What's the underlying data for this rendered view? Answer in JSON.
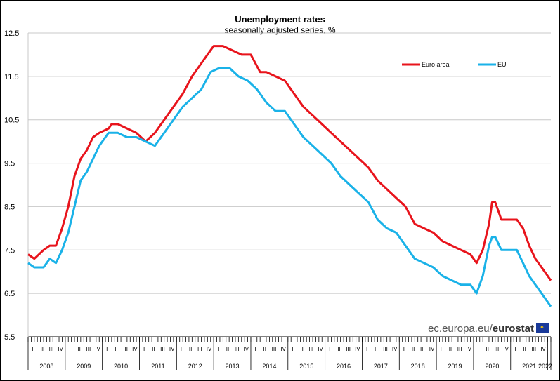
{
  "source_text": "ec.europa.eu/",
  "source_brand": "eurostat",
  "chart_data": {
    "type": "line",
    "title": "Unemployment rates",
    "subtitle": "seasonally adjusted series, %",
    "ylim": [
      5.5,
      12.5
    ],
    "yticks": [
      "5.5",
      "6.5",
      "7.5",
      "8.5",
      "9.5",
      "10.5",
      "11.5",
      "12.5"
    ],
    "grid": true,
    "legend_position": "top-right",
    "x_start": "2008-01",
    "x_end": "2022-02",
    "quarter_labels": [
      "I",
      "II",
      "III",
      "IV"
    ],
    "year_labels": [
      "2008",
      "2009",
      "2010",
      "2011",
      "2012",
      "2013",
      "2014",
      "2015",
      "2016",
      "2017",
      "2018",
      "2019",
      "2020",
      "2021",
      "2022"
    ],
    "series": [
      {
        "name": "Euro area",
        "color": "#e8141c",
        "points": [
          [
            "2008-01",
            7.4
          ],
          [
            "2008-03",
            7.3
          ],
          [
            "2008-06",
            7.5
          ],
          [
            "2008-08",
            7.6
          ],
          [
            "2008-10",
            7.6
          ],
          [
            "2008-12",
            8.0
          ],
          [
            "2009-02",
            8.5
          ],
          [
            "2009-04",
            9.2
          ],
          [
            "2009-06",
            9.6
          ],
          [
            "2009-08",
            9.8
          ],
          [
            "2009-10",
            10.1
          ],
          [
            "2009-12",
            10.2
          ],
          [
            "2010-03",
            10.3
          ],
          [
            "2010-04",
            10.4
          ],
          [
            "2010-06",
            10.4
          ],
          [
            "2010-09",
            10.3
          ],
          [
            "2010-12",
            10.2
          ],
          [
            "2011-03",
            10.0
          ],
          [
            "2011-06",
            10.2
          ],
          [
            "2011-09",
            10.5
          ],
          [
            "2011-12",
            10.8
          ],
          [
            "2012-03",
            11.1
          ],
          [
            "2012-06",
            11.5
          ],
          [
            "2012-09",
            11.8
          ],
          [
            "2012-11",
            12.0
          ],
          [
            "2013-01",
            12.2
          ],
          [
            "2013-04",
            12.2
          ],
          [
            "2013-07",
            12.1
          ],
          [
            "2013-10",
            12.0
          ],
          [
            "2014-01",
            12.0
          ],
          [
            "2014-04",
            11.6
          ],
          [
            "2014-06",
            11.6
          ],
          [
            "2014-09",
            11.5
          ],
          [
            "2014-12",
            11.4
          ],
          [
            "2015-03",
            11.1
          ],
          [
            "2015-06",
            10.8
          ],
          [
            "2015-09",
            10.6
          ],
          [
            "2015-12",
            10.4
          ],
          [
            "2016-03",
            10.2
          ],
          [
            "2016-06",
            10.0
          ],
          [
            "2016-09",
            9.8
          ],
          [
            "2016-12",
            9.6
          ],
          [
            "2017-03",
            9.4
          ],
          [
            "2017-06",
            9.1
          ],
          [
            "2017-09",
            8.9
          ],
          [
            "2017-12",
            8.7
          ],
          [
            "2018-03",
            8.5
          ],
          [
            "2018-06",
            8.1
          ],
          [
            "2018-09",
            8.0
          ],
          [
            "2018-12",
            7.9
          ],
          [
            "2019-03",
            7.7
          ],
          [
            "2019-06",
            7.6
          ],
          [
            "2019-09",
            7.5
          ],
          [
            "2019-12",
            7.4
          ],
          [
            "2020-02",
            7.2
          ],
          [
            "2020-04",
            7.5
          ],
          [
            "2020-06",
            8.1
          ],
          [
            "2020-07",
            8.6
          ],
          [
            "2020-08",
            8.6
          ],
          [
            "2020-10",
            8.2
          ],
          [
            "2020-12",
            8.2
          ],
          [
            "2021-03",
            8.2
          ],
          [
            "2021-05",
            8.0
          ],
          [
            "2021-07",
            7.6
          ],
          [
            "2021-09",
            7.3
          ],
          [
            "2021-11",
            7.1
          ],
          [
            "2022-01",
            6.9
          ],
          [
            "2022-02",
            6.8
          ]
        ]
      },
      {
        "name": "EU",
        "color": "#1ab2e8",
        "points": [
          [
            "2008-01",
            7.2
          ],
          [
            "2008-03",
            7.1
          ],
          [
            "2008-06",
            7.1
          ],
          [
            "2008-08",
            7.3
          ],
          [
            "2008-10",
            7.2
          ],
          [
            "2008-12",
            7.5
          ],
          [
            "2009-02",
            7.9
          ],
          [
            "2009-04",
            8.5
          ],
          [
            "2009-06",
            9.1
          ],
          [
            "2009-08",
            9.3
          ],
          [
            "2009-10",
            9.6
          ],
          [
            "2009-12",
            9.9
          ],
          [
            "2010-03",
            10.2
          ],
          [
            "2010-06",
            10.2
          ],
          [
            "2010-09",
            10.1
          ],
          [
            "2010-12",
            10.1
          ],
          [
            "2011-03",
            10.0
          ],
          [
            "2011-06",
            9.9
          ],
          [
            "2011-09",
            10.2
          ],
          [
            "2011-12",
            10.5
          ],
          [
            "2012-03",
            10.8
          ],
          [
            "2012-06",
            11.0
          ],
          [
            "2012-09",
            11.2
          ],
          [
            "2012-12",
            11.6
          ],
          [
            "2013-03",
            11.7
          ],
          [
            "2013-06",
            11.7
          ],
          [
            "2013-09",
            11.5
          ],
          [
            "2013-12",
            11.4
          ],
          [
            "2014-03",
            11.2
          ],
          [
            "2014-06",
            10.9
          ],
          [
            "2014-09",
            10.7
          ],
          [
            "2014-12",
            10.7
          ],
          [
            "2015-03",
            10.4
          ],
          [
            "2015-06",
            10.1
          ],
          [
            "2015-09",
            9.9
          ],
          [
            "2015-12",
            9.7
          ],
          [
            "2016-03",
            9.5
          ],
          [
            "2016-06",
            9.2
          ],
          [
            "2016-09",
            9.0
          ],
          [
            "2016-12",
            8.8
          ],
          [
            "2017-03",
            8.6
          ],
          [
            "2017-06",
            8.2
          ],
          [
            "2017-09",
            8.0
          ],
          [
            "2017-12",
            7.9
          ],
          [
            "2018-03",
            7.6
          ],
          [
            "2018-06",
            7.3
          ],
          [
            "2018-09",
            7.2
          ],
          [
            "2018-12",
            7.1
          ],
          [
            "2019-03",
            6.9
          ],
          [
            "2019-06",
            6.8
          ],
          [
            "2019-09",
            6.7
          ],
          [
            "2019-12",
            6.7
          ],
          [
            "2020-02",
            6.5
          ],
          [
            "2020-04",
            6.9
          ],
          [
            "2020-06",
            7.6
          ],
          [
            "2020-07",
            7.8
          ],
          [
            "2020-08",
            7.8
          ],
          [
            "2020-10",
            7.5
          ],
          [
            "2020-12",
            7.5
          ],
          [
            "2021-03",
            7.5
          ],
          [
            "2021-05",
            7.2
          ],
          [
            "2021-07",
            6.9
          ],
          [
            "2021-09",
            6.7
          ],
          [
            "2021-11",
            6.5
          ],
          [
            "2022-01",
            6.3
          ],
          [
            "2022-02",
            6.2
          ]
        ]
      }
    ]
  }
}
